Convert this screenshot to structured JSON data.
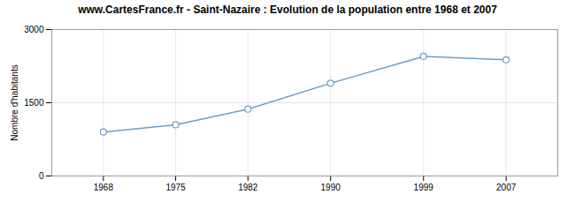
{
  "chart_data": {
    "type": "line",
    "title": "www.CartesFrance.fr - Saint-Nazaire : Evolution de la population entre 1968 et 2007",
    "y_label": "Nombre d'habitants",
    "x": [
      1968,
      1975,
      1982,
      1990,
      1999,
      2007
    ],
    "values": [
      900,
      1050,
      1370,
      1900,
      2450,
      2380
    ],
    "color": "#6b9ec8",
    "marker": "circle",
    "xlim": [
      1963,
      2012
    ],
    "xticks": [
      1968,
      1975,
      1982,
      1990,
      1999,
      2007
    ],
    "ylim": [
      0,
      3000
    ],
    "yticks": [
      0,
      1500,
      3000
    ],
    "grid": true
  }
}
